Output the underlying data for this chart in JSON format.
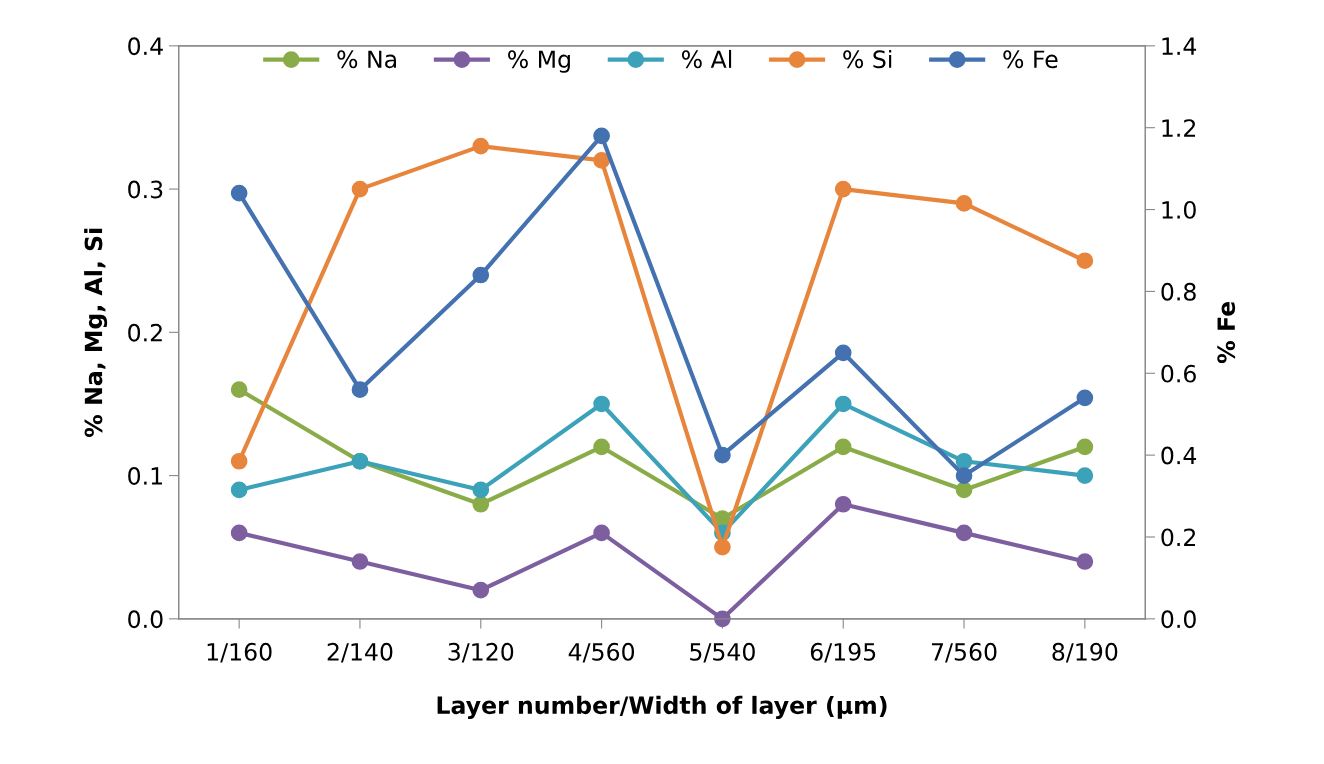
{
  "chart_data": {
    "type": "line",
    "xlabel": "Layer number/Width of layer (µm)",
    "ylabel": "% Na, Mg, Al, Si",
    "y2label": "% Fe",
    "categories": [
      "1/160",
      "2/140",
      "3/120",
      "4/560",
      "5/540",
      "6/195",
      "7/560",
      "8/190"
    ],
    "series": [
      {
        "name": "% Na",
        "color": "#8aac48",
        "values": [
          0.16,
          0.11,
          0.08,
          0.12,
          0.07,
          0.12,
          0.09,
          0.12
        ]
      },
      {
        "name": "% Mg",
        "color": "#7d5fa0",
        "values": [
          0.06,
          0.04,
          0.02,
          0.06,
          0.0,
          0.08,
          0.06,
          0.04
        ]
      },
      {
        "name": "% Al",
        "color": "#3ca2ba",
        "values": [
          0.09,
          0.11,
          0.09,
          0.15,
          0.06,
          0.15,
          0.11,
          0.1
        ]
      },
      {
        "name": "% Si",
        "color": "#e8853c",
        "values": [
          0.11,
          0.3,
          0.33,
          0.32,
          0.05,
          0.3,
          0.29,
          0.25
        ]
      },
      {
        "name": "% Fe",
        "color": "#4471b0",
        "axis": "y2",
        "values": [
          1.04,
          0.56,
          0.84,
          1.18,
          0.4,
          0.65,
          0.35,
          0.54
        ]
      }
    ],
    "ylim": [
      0,
      0.4
    ],
    "yticks": [
      {
        "value": 0,
        "label": "0.0"
      },
      0.1,
      0.2,
      0.3,
      0.4
    ],
    "y2lim": [
      0,
      1.4
    ],
    "y2ticks": [
      {
        "value": 0,
        "label": "0.0"
      },
      0.2,
      0.4,
      0.6,
      0.8,
      {
        "value": 1.0,
        "label": "1.0"
      },
      1.2,
      1.4
    ],
    "legend": "top",
    "marker": "circle",
    "line_style": "solid",
    "grid": false
  }
}
